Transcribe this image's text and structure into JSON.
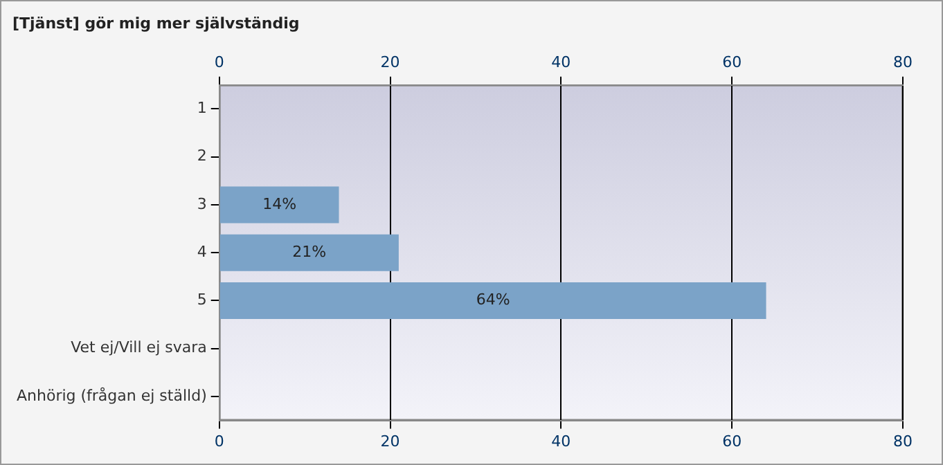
{
  "chart_data": {
    "type": "bar",
    "orientation": "horizontal",
    "title": "[Tjänst] gör mig mer självständig",
    "categories": [
      "1",
      "2",
      "3",
      "4",
      "5",
      "Vet ej/Vill ej svara",
      "Anhörig (frågan ej ställd)"
    ],
    "values": [
      0,
      0,
      14,
      21,
      64,
      0,
      0
    ],
    "value_labels": [
      null,
      null,
      "14%",
      "21%",
      "64%",
      null,
      null
    ],
    "color": "#7ba3c8",
    "xlim": [
      0,
      80
    ],
    "xticks": [
      0,
      20,
      40,
      60,
      80
    ],
    "x2lim": [
      0,
      80
    ],
    "x2ticks": [
      0,
      20,
      40,
      60,
      80
    ],
    "grid": "x",
    "legend": false
  }
}
